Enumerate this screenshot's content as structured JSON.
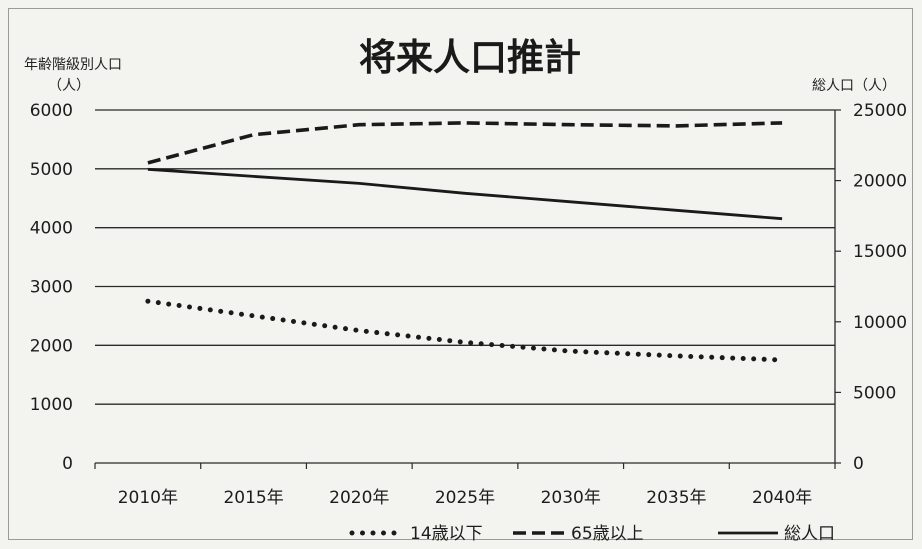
{
  "chart_data": {
    "type": "line",
    "title": "将来人口推計",
    "ylabel_left": [
      "年齢階級別人口",
      "（人）"
    ],
    "ylabel_right": "総人口（人）",
    "categories": [
      "2010年",
      "2015年",
      "2020年",
      "2025年",
      "2030年",
      "2035年",
      "2040年"
    ],
    "y_left": {
      "min": 0,
      "max": 6000,
      "ticks": [
        "0",
        "1000",
        "2000",
        "3000",
        "4000",
        "5000",
        "6000"
      ]
    },
    "y_right": {
      "min": 0,
      "max": 25000,
      "ticks": [
        "0",
        "5000",
        "10000",
        "15000",
        "20000",
        "25000"
      ]
    },
    "grid": true,
    "legend_position": "bottom",
    "series": [
      {
        "name": "14歳以下",
        "axis": "left",
        "style": "dotted",
        "values": [
          2750,
          2500,
          2250,
          2050,
          1900,
          1820,
          1750
        ]
      },
      {
        "name": "65歳以上",
        "axis": "left",
        "style": "dashed",
        "values": [
          5100,
          5580,
          5750,
          5780,
          5750,
          5730,
          5780
        ]
      },
      {
        "name": "総人口",
        "axis": "right",
        "style": "solid",
        "values": [
          20800,
          20300,
          19800,
          19100,
          18500,
          17900,
          17300
        ]
      }
    ]
  },
  "colors": {
    "line": "#1a1a1a",
    "grid": "#2a2a2a",
    "background": "#f3f3f0"
  }
}
